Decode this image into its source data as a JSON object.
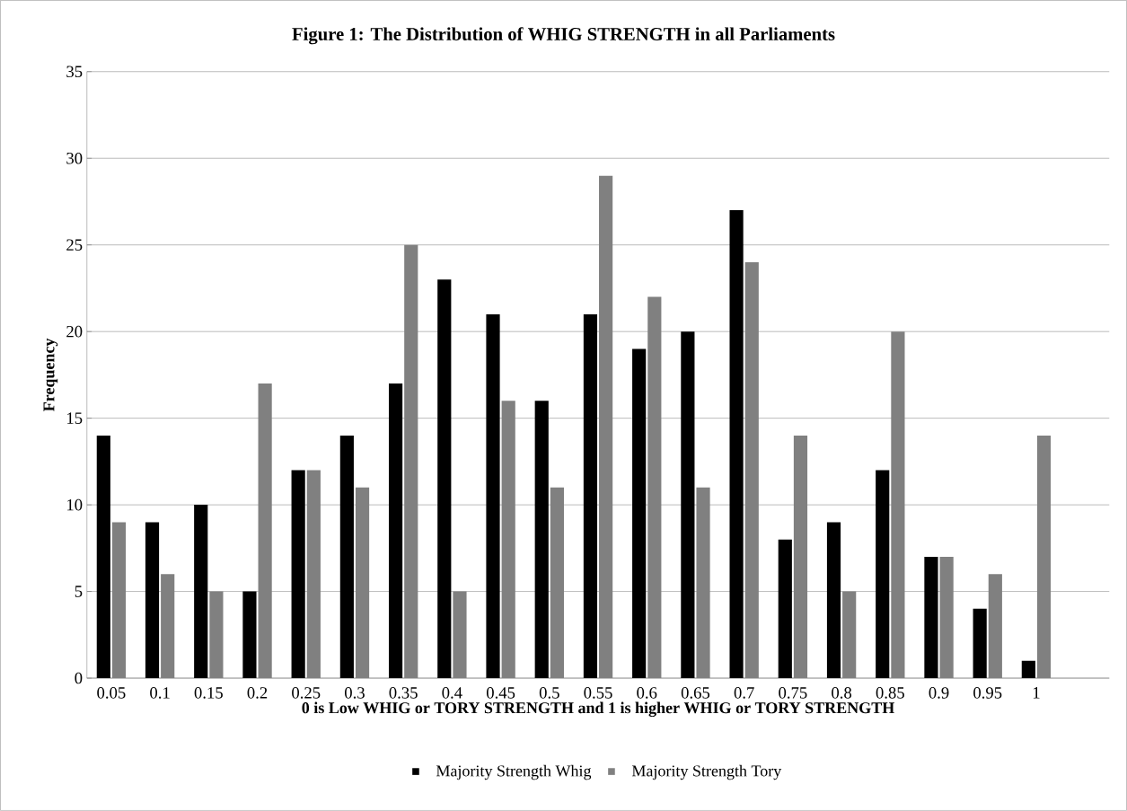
{
  "chart_data": {
    "type": "bar",
    "title": "Figure 1: The Distribution of WHIG STRENGTH in all Parliaments",
    "xlabel": "0 is Low WHIG or TORY STRENGTH and 1 is higher WHIG  or  TORY STRENGTH",
    "ylabel": "Frequency",
    "categories": [
      "0.05",
      "0.1",
      "0.15",
      "0.2",
      "0.25",
      "0.3",
      "0.35",
      "0.4",
      "0.45",
      "0.5",
      "0.55",
      "0.6",
      "0.65",
      "0.7",
      "0.75",
      "0.8",
      "0.85",
      "0.9",
      "0.95",
      "1",
      null
    ],
    "series": [
      {
        "name": "Majority Strength Whig",
        "color": "#000000",
        "values": [
          14,
          9,
          10,
          5,
          12,
          14,
          17,
          23,
          21,
          16,
          21,
          19,
          20,
          27,
          8,
          9,
          12,
          7,
          4,
          1,
          null
        ]
      },
      {
        "name": "Majority Strength Tory",
        "color": "#808080",
        "values": [
          9,
          6,
          5,
          17,
          12,
          11,
          25,
          5,
          16,
          11,
          29,
          22,
          11,
          24,
          14,
          5,
          20,
          7,
          6,
          14,
          null
        ]
      }
    ],
    "ylim": [
      0,
      35
    ],
    "yticks": [
      0,
      5,
      10,
      15,
      20,
      25,
      30,
      35
    ],
    "grid": "y",
    "legend": "bottom"
  }
}
